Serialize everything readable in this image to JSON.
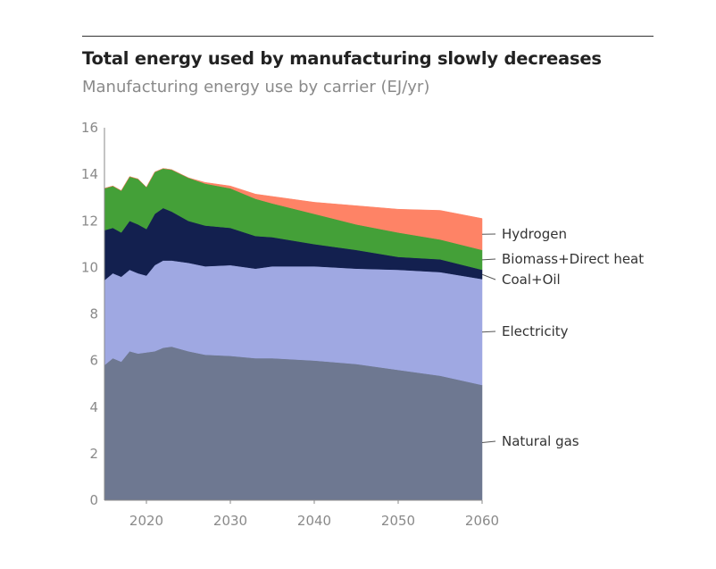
{
  "chart_data": {
    "type": "area",
    "stacked": true,
    "title": "Total energy used by manufacturing slowly decreases",
    "subtitle": "Manufacturing energy use by carrier (EJ/yr)",
    "xlabel": "",
    "ylabel": "",
    "xlim": [
      2015,
      2060
    ],
    "ylim": [
      0,
      16
    ],
    "x_ticks": [
      "2020",
      "2030",
      "2040",
      "2050",
      "2060"
    ],
    "y_ticks": [
      "0",
      "2",
      "4",
      "6",
      "8",
      "10",
      "12",
      "14",
      "16"
    ],
    "grid": false,
    "legend": "right, direct labels",
    "x": [
      2015,
      2016,
      2017,
      2018,
      2019,
      2020,
      2021,
      2022,
      2023,
      2025,
      2027,
      2030,
      2033,
      2035,
      2040,
      2045,
      2050,
      2055,
      2060
    ],
    "series": [
      {
        "name": "Natural gas",
        "color": "#6e7891",
        "values": [
          5.8,
          6.1,
          5.95,
          6.4,
          6.3,
          6.35,
          6.4,
          6.55,
          6.6,
          6.4,
          6.25,
          6.2,
          6.1,
          6.1,
          6.0,
          5.85,
          5.6,
          5.35,
          4.95
        ]
      },
      {
        "name": "Electricity",
        "color": "#9fa8e2",
        "values": [
          3.65,
          3.65,
          3.65,
          3.5,
          3.45,
          3.3,
          3.7,
          3.75,
          3.7,
          3.8,
          3.8,
          3.9,
          3.85,
          3.95,
          4.05,
          4.1,
          4.3,
          4.45,
          4.55
        ]
      },
      {
        "name": "Coal+Oil",
        "color": "#13204f",
        "values": [
          2.15,
          1.95,
          1.9,
          2.1,
          2.1,
          2.0,
          2.2,
          2.25,
          2.1,
          1.8,
          1.75,
          1.6,
          1.4,
          1.25,
          0.95,
          0.8,
          0.55,
          0.55,
          0.4
        ]
      },
      {
        "name": "Biomass+Direct heat",
        "color": "#44a038",
        "values": [
          1.8,
          1.8,
          1.8,
          1.9,
          1.95,
          1.8,
          1.8,
          1.7,
          1.8,
          1.85,
          1.8,
          1.7,
          1.6,
          1.45,
          1.3,
          1.1,
          1.05,
          0.85,
          0.85
        ]
      },
      {
        "name": "Hydrogen",
        "color": "#fe8366",
        "values": [
          0,
          0,
          0,
          0,
          0,
          0,
          0,
          0,
          0,
          0,
          0.05,
          0.1,
          0.2,
          0.3,
          0.5,
          0.8,
          1.0,
          1.25,
          1.35
        ]
      }
    ]
  }
}
